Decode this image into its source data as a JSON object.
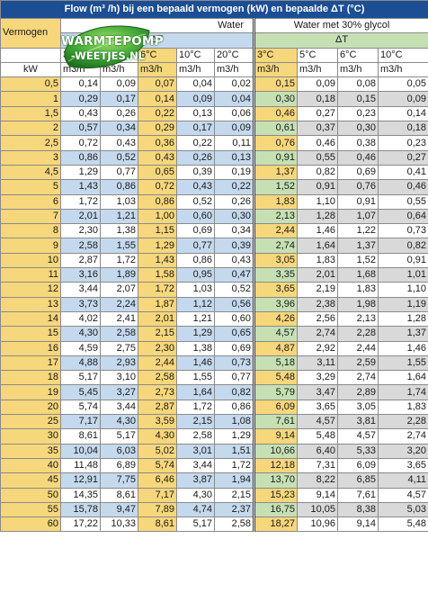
{
  "title": "Flow (m³ /h) bij een bepaald vermogen (kW) en bepaalde ΔT (°C)",
  "logo": {
    "line1": "WARMTEPOMP",
    "line2": "-WEETJES.NL"
  },
  "header": {
    "vermogen": "Vermogen",
    "water": "Water",
    "glycol": "Water met 30% glycol",
    "delta_t": "ΔT",
    "temps": [
      "3°C",
      "5°C",
      "6°C",
      "10°C",
      "20°C",
      "3°C",
      "5°C",
      "6°C",
      "10°C"
    ],
    "kw": "kW",
    "unit": "m3/h"
  },
  "colors": {
    "title_bg": "#1c4e94",
    "yellow": "#f7d77c",
    "blue": "#c5d9ee",
    "green": "#c6e0b4",
    "gray": "#d9d9d9"
  },
  "rows": [
    {
      "kw": "0,5",
      "w": [
        "0,14",
        "0,09",
        "0,07",
        "0,04",
        "0,02"
      ],
      "g": [
        "0,15",
        "0,09",
        "0,08",
        "0,05"
      ]
    },
    {
      "kw": "1",
      "w": [
        "0,29",
        "0,17",
        "0,14",
        "0,09",
        "0,04"
      ],
      "g": [
        "0,30",
        "0,18",
        "0,15",
        "0,09"
      ]
    },
    {
      "kw": "1,5",
      "w": [
        "0,43",
        "0,26",
        "0,22",
        "0,13",
        "0,06"
      ],
      "g": [
        "0,46",
        "0,27",
        "0,23",
        "0,14"
      ]
    },
    {
      "kw": "2",
      "w": [
        "0,57",
        "0,34",
        "0,29",
        "0,17",
        "0,09"
      ],
      "g": [
        "0,61",
        "0,37",
        "0,30",
        "0,18"
      ]
    },
    {
      "kw": "2,5",
      "w": [
        "0,72",
        "0,43",
        "0,36",
        "0,22",
        "0,11"
      ],
      "g": [
        "0,76",
        "0,46",
        "0,38",
        "0,23"
      ]
    },
    {
      "kw": "3",
      "w": [
        "0,86",
        "0,52",
        "0,43",
        "0,26",
        "0,13"
      ],
      "g": [
        "0,91",
        "0,55",
        "0,46",
        "0,27"
      ]
    },
    {
      "kw": "4,5",
      "w": [
        "1,29",
        "0,77",
        "0,65",
        "0,39",
        "0,19"
      ],
      "g": [
        "1,37",
        "0,82",
        "0,69",
        "0,41"
      ]
    },
    {
      "kw": "5",
      "w": [
        "1,43",
        "0,86",
        "0,72",
        "0,43",
        "0,22"
      ],
      "g": [
        "1,52",
        "0,91",
        "0,76",
        "0,46"
      ]
    },
    {
      "kw": "6",
      "w": [
        "1,72",
        "1,03",
        "0,86",
        "0,52",
        "0,26"
      ],
      "g": [
        "1,83",
        "1,10",
        "0,91",
        "0,55"
      ]
    },
    {
      "kw": "7",
      "w": [
        "2,01",
        "1,21",
        "1,00",
        "0,60",
        "0,30"
      ],
      "g": [
        "2,13",
        "1,28",
        "1,07",
        "0,64"
      ]
    },
    {
      "kw": "8",
      "w": [
        "2,30",
        "1,38",
        "1,15",
        "0,69",
        "0,34"
      ],
      "g": [
        "2,44",
        "1,46",
        "1,22",
        "0,73"
      ]
    },
    {
      "kw": "9",
      "w": [
        "2,58",
        "1,55",
        "1,29",
        "0,77",
        "0,39"
      ],
      "g": [
        "2,74",
        "1,64",
        "1,37",
        "0,82"
      ]
    },
    {
      "kw": "10",
      "w": [
        "2,87",
        "1,72",
        "1,43",
        "0,86",
        "0,43"
      ],
      "g": [
        "3,05",
        "1,83",
        "1,52",
        "0,91"
      ]
    },
    {
      "kw": "11",
      "w": [
        "3,16",
        "1,89",
        "1,58",
        "0,95",
        "0,47"
      ],
      "g": [
        "3,35",
        "2,01",
        "1,68",
        "1,01"
      ]
    },
    {
      "kw": "12",
      "w": [
        "3,44",
        "2,07",
        "1,72",
        "1,03",
        "0,52"
      ],
      "g": [
        "3,65",
        "2,19",
        "1,83",
        "1,10"
      ]
    },
    {
      "kw": "13",
      "w": [
        "3,73",
        "2,24",
        "1,87",
        "1,12",
        "0,56"
      ],
      "g": [
        "3,96",
        "2,38",
        "1,98",
        "1,19"
      ]
    },
    {
      "kw": "14",
      "w": [
        "4,02",
        "2,41",
        "2,01",
        "1,21",
        "0,60"
      ],
      "g": [
        "4,26",
        "2,56",
        "2,13",
        "1,28"
      ]
    },
    {
      "kw": "15",
      "w": [
        "4,30",
        "2,58",
        "2,15",
        "1,29",
        "0,65"
      ],
      "g": [
        "4,57",
        "2,74",
        "2,28",
        "1,37"
      ]
    },
    {
      "kw": "16",
      "w": [
        "4,59",
        "2,75",
        "2,30",
        "1,38",
        "0,69"
      ],
      "g": [
        "4,87",
        "2,92",
        "2,44",
        "1,46"
      ]
    },
    {
      "kw": "17",
      "w": [
        "4,88",
        "2,93",
        "2,44",
        "1,46",
        "0,73"
      ],
      "g": [
        "5,18",
        "3,11",
        "2,59",
        "1,55"
      ]
    },
    {
      "kw": "18",
      "w": [
        "5,17",
        "3,10",
        "2,58",
        "1,55",
        "0,77"
      ],
      "g": [
        "5,48",
        "3,29",
        "2,74",
        "1,64"
      ]
    },
    {
      "kw": "19",
      "w": [
        "5,45",
        "3,27",
        "2,73",
        "1,64",
        "0,82"
      ],
      "g": [
        "5,79",
        "3,47",
        "2,89",
        "1,74"
      ]
    },
    {
      "kw": "20",
      "w": [
        "5,74",
        "3,44",
        "2,87",
        "1,72",
        "0,86"
      ],
      "g": [
        "6,09",
        "3,65",
        "3,05",
        "1,83"
      ]
    },
    {
      "kw": "25",
      "w": [
        "7,17",
        "4,30",
        "3,59",
        "2,15",
        "1,08"
      ],
      "g": [
        "7,61",
        "4,57",
        "3,81",
        "2,28"
      ]
    },
    {
      "kw": "30",
      "w": [
        "8,61",
        "5,17",
        "4,30",
        "2,58",
        "1,29"
      ],
      "g": [
        "9,14",
        "5,48",
        "4,57",
        "2,74"
      ]
    },
    {
      "kw": "35",
      "w": [
        "10,04",
        "6,03",
        "5,02",
        "3,01",
        "1,51"
      ],
      "g": [
        "10,66",
        "6,40",
        "5,33",
        "3,20"
      ]
    },
    {
      "kw": "40",
      "w": [
        "11,48",
        "6,89",
        "5,74",
        "3,44",
        "1,72"
      ],
      "g": [
        "12,18",
        "7,31",
        "6,09",
        "3,65"
      ]
    },
    {
      "kw": "45",
      "w": [
        "12,91",
        "7,75",
        "6,46",
        "3,87",
        "1,94"
      ],
      "g": [
        "13,70",
        "8,22",
        "6,85",
        "4,11"
      ]
    },
    {
      "kw": "50",
      "w": [
        "14,35",
        "8,61",
        "7,17",
        "4,30",
        "2,15"
      ],
      "g": [
        "15,23",
        "9,14",
        "7,61",
        "4,57"
      ]
    },
    {
      "kw": "55",
      "w": [
        "15,78",
        "9,47",
        "7,89",
        "4,74",
        "2,37"
      ],
      "g": [
        "16,75",
        "10,05",
        "8,38",
        "5,03"
      ]
    },
    {
      "kw": "60",
      "w": [
        "17,22",
        "10,33",
        "8,61",
        "5,17",
        "2,58"
      ],
      "g": [
        "18,27",
        "10,96",
        "9,14",
        "5,48"
      ]
    }
  ]
}
